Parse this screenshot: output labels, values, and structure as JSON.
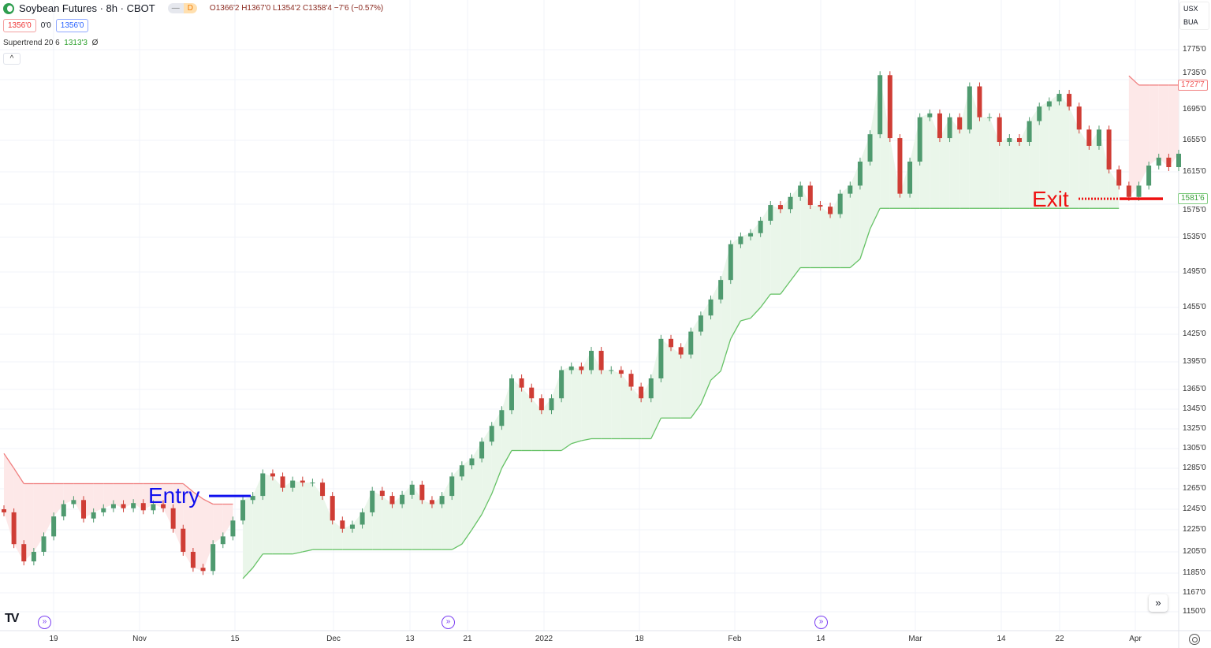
{
  "header": {
    "symbol": "Soybean Futures · 8h · CBOT",
    "pill_left": "—",
    "pill_right": "D",
    "open": "O1366'2",
    "high": "H1367'0",
    "low": "L1354'2",
    "close": "C1358'4",
    "change": "−7'6 (−0.57%)"
  },
  "quote": {
    "bid": "1356'0",
    "spread": "0'0",
    "ask": "1356'0"
  },
  "indicator": {
    "name": "Supertrend 20 6",
    "value": "1313'3",
    "icon": "Ø"
  },
  "collapse_icon": "^",
  "currency": {
    "unit": "USX",
    "unit2": "BUA"
  },
  "colors": {
    "up": "#4f9a6f",
    "down": "#cf3d35",
    "supertrend_up": "#66c266",
    "supertrend_down": "#f08080",
    "fill_up": "#eaf6ea",
    "fill_down": "#fde8e8",
    "entry": "#1010ee",
    "exit": "#ee1111",
    "event": "#7b3ff2"
  },
  "chart_data": {
    "type": "candlestick",
    "title": "Soybean Futures · 8h · CBOT",
    "x_ticks": [
      "19",
      "Nov",
      "15",
      "Dec",
      "13",
      "21",
      "2022",
      "18",
      "Feb",
      "14",
      "Mar",
      "14",
      "22",
      "Apr"
    ],
    "y_ticks": [
      {
        "value": 1775,
        "label": "1775'0"
      },
      {
        "value": 1735,
        "label": "1735'0"
      },
      {
        "value": 1695,
        "label": "1695'0"
      },
      {
        "value": 1655,
        "label": "1655'0"
      },
      {
        "value": 1615,
        "label": "1615'0"
      },
      {
        "value": 1575,
        "label": "1575'0"
      },
      {
        "value": 1535,
        "label": "1535'0"
      },
      {
        "value": 1495,
        "label": "1495'0"
      },
      {
        "value": 1455,
        "label": "1455'0"
      },
      {
        "value": 1425,
        "label": "1425'0"
      },
      {
        "value": 1395,
        "label": "1395'0"
      },
      {
        "value": 1365,
        "label": "1365'0"
      },
      {
        "value": 1345,
        "label": "1345'0"
      },
      {
        "value": 1325,
        "label": "1325'0"
      },
      {
        "value": 1305,
        "label": "1305'0"
      },
      {
        "value": 1285,
        "label": "1285'0"
      },
      {
        "value": 1265,
        "label": "1265'0"
      },
      {
        "value": 1245,
        "label": "1245'0"
      },
      {
        "value": 1225,
        "label": "1225'0"
      },
      {
        "value": 1205,
        "label": "1205'0"
      },
      {
        "value": 1185,
        "label": "1185'0"
      },
      {
        "value": 1167,
        "label": "1167'0"
      },
      {
        "value": 1150,
        "label": "1150'0"
      }
    ],
    "close": [
      1242,
      1212,
      1196,
      1205,
      1219,
      1238,
      1250,
      1254,
      1236,
      1242,
      1246,
      1250,
      1246,
      1251,
      1244,
      1250,
      1246,
      1226,
      1205,
      1190,
      1187,
      1212,
      1219,
      1234,
      1254,
      1258,
      1280,
      1277,
      1266,
      1273,
      1271,
      1271,
      1258,
      1234,
      1226,
      1230,
      1242,
      1263,
      1258,
      1250,
      1259,
      1269,
      1254,
      1250,
      1258,
      1277,
      1288,
      1295,
      1312,
      1328,
      1344,
      1377,
      1367,
      1356,
      1344,
      1356,
      1386,
      1390,
      1386,
      1407,
      1386,
      1386,
      1382,
      1368,
      1356,
      1377,
      1420,
      1411,
      1403,
      1428,
      1446,
      1464,
      1486,
      1527,
      1536,
      1540,
      1555,
      1574,
      1569,
      1584,
      1598,
      1574,
      1572,
      1563,
      1588,
      1598,
      1628,
      1663,
      1741,
      1658,
      1588,
      1628,
      1685,
      1690,
      1658,
      1685,
      1669,
      1726,
      1685,
      1685,
      1653,
      1658,
      1653,
      1680,
      1699,
      1706,
      1716,
      1699,
      1669,
      1648,
      1669,
      1618,
      1598,
      1584,
      1598,
      1623,
      1633,
      1621,
      1638
    ],
    "supertrend": [
      1300,
      1285,
      1270,
      1270,
      1270,
      1270,
      1270,
      1270,
      1270,
      1270,
      1270,
      1270,
      1270,
      1270,
      1270,
      1270,
      1270,
      1270,
      1270,
      1262,
      1255,
      1250,
      1250,
      1250,
      1180,
      1190,
      1203,
      1203,
      1203,
      1203,
      1205,
      1207,
      1207,
      1207,
      1207,
      1207,
      1207,
      1207,
      1207,
      1207,
      1207,
      1207,
      1207,
      1207,
      1207,
      1207,
      1212,
      1225,
      1240,
      1260,
      1285,
      1303,
      1303,
      1303,
      1303,
      1303,
      1303,
      1310,
      1313,
      1315,
      1315,
      1315,
      1315,
      1315,
      1315,
      1315,
      1336,
      1336,
      1336,
      1336,
      1350,
      1375,
      1385,
      1420,
      1440,
      1443,
      1455,
      1470,
      1470,
      1485,
      1500,
      1500,
      1500,
      1500,
      1500,
      1500,
      1510,
      1545,
      1570,
      1570,
      1570,
      1570,
      1570,
      1570,
      1570,
      1570,
      1570,
      1570,
      1570,
      1570,
      1570,
      1570,
      1570,
      1570,
      1570,
      1570,
      1570,
      1570,
      1570,
      1570,
      1570,
      1570,
      1570,
      1740,
      1727.7,
      1727.7,
      1727.7,
      1727.7,
      1727.7,
      1727.7
    ],
    "annotations": {
      "entry_label": "Entry",
      "entry_price": 1258,
      "exit_label": "Exit",
      "exit_price": 1581.75
    },
    "price_labels": {
      "supertrend_down": "1727'7",
      "last_stop": "1581'6"
    }
  }
}
